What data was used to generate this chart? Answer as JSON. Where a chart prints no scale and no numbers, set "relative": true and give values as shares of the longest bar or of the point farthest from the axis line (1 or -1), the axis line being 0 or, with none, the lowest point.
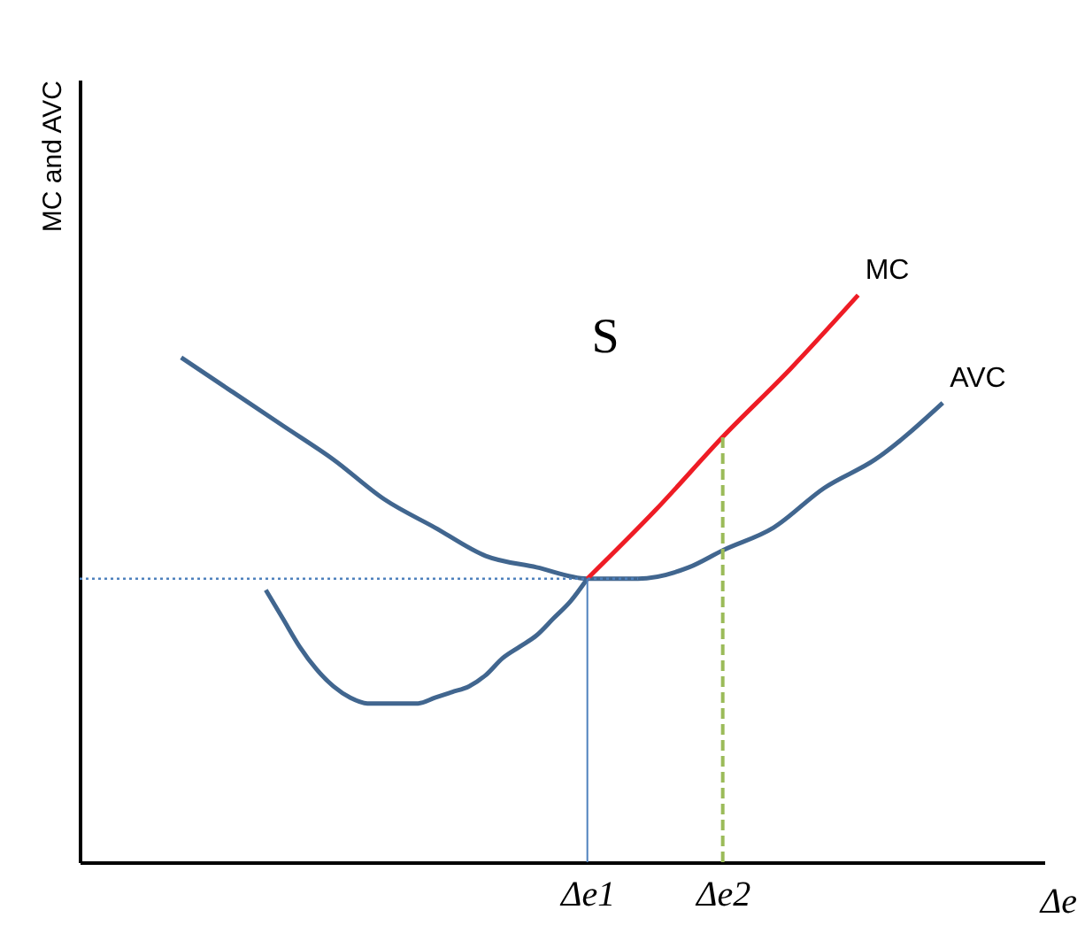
{
  "chart_data": {
    "type": "line",
    "relative": true,
    "xlabel": "Δe",
    "ylabel": "MC and AVC",
    "categories": [
      null,
      null,
      null,
      null,
      null,
      null,
      null,
      null,
      null,
      null,
      null,
      null,
      null,
      null,
      null,
      null,
      null,
      null,
      null,
      null,
      null,
      null,
      null,
      null,
      null,
      null,
      null,
      null,
      null,
      null,
      "Δe1",
      null,
      null,
      null,
      null,
      null,
      null,
      null,
      "Δe2",
      null,
      null,
      null,
      null,
      null,
      null,
      null,
      null,
      null,
      null,
      null,
      null,
      null,
      null,
      null,
      null,
      null,
      null,
      null
    ],
    "tick_labels": "x",
    "grid": false,
    "annotations": [
      "S"
    ],
    "series": [
      {
        "name": "AVC",
        "color": "#41668f",
        "line_style": "solid",
        "values": [
          null,
          null,
          null,
          null,
          null,
          null,
          0.89,
          null,
          null,
          0.83,
          null,
          null,
          0.77,
          null,
          null,
          0.71,
          null,
          null,
          0.64,
          null,
          null,
          0.59,
          null,
          null,
          0.54,
          null,
          null,
          0.52,
          null,
          null,
          0.5,
          null,
          null,
          0.5,
          null,
          null,
          0.52,
          null,
          0.55,
          null,
          null,
          0.59,
          null,
          null,
          0.66,
          null,
          null,
          0.71,
          null,
          null,
          null,
          0.81,
          null,
          null,
          null,
          null,
          null,
          null
        ]
      },
      {
        "color": "#41668f",
        "line_style": "solid",
        "values": [
          null,
          null,
          null,
          null,
          null,
          null,
          null,
          null,
          null,
          null,
          null,
          0.48,
          0.43,
          0.38,
          0.34,
          0.31,
          0.29,
          0.28,
          0.28,
          0.28,
          0.28,
          0.29,
          0.3,
          0.31,
          0.33,
          0.36,
          0.38,
          0.4,
          0.43,
          0.46,
          0.5,
          null,
          null,
          null,
          null,
          null,
          null,
          null,
          null,
          null,
          null,
          null,
          null,
          null,
          null,
          null,
          null,
          null,
          null,
          null,
          null,
          null,
          null,
          null,
          null,
          null,
          null,
          null
        ]
      },
      {
        "name": "MC",
        "color": "#ee1c25",
        "line_style": "solid",
        "values": [
          null,
          null,
          null,
          null,
          null,
          null,
          null,
          null,
          null,
          null,
          null,
          null,
          null,
          null,
          null,
          null,
          null,
          null,
          null,
          null,
          null,
          null,
          null,
          null,
          null,
          null,
          null,
          null,
          null,
          null,
          0.5,
          null,
          null,
          null,
          0.62,
          null,
          null,
          null,
          0.75,
          null,
          null,
          null,
          0.87,
          null,
          null,
          null,
          1.0,
          null,
          null,
          null,
          null,
          null,
          null,
          null,
          null,
          null,
          null,
          null
        ]
      }
    ],
    "ref_lines": [
      {
        "axis": "y",
        "value": 0.5,
        "color": "#4f81bd",
        "line_style": "dotted"
      },
      {
        "axis": "x",
        "value": "Δe1",
        "color": "#4f81bd",
        "line_style": "solid"
      },
      {
        "axis": "x",
        "value": "Δe2",
        "color": "#9bbb59",
        "line_style": "dashed"
      }
    ]
  }
}
